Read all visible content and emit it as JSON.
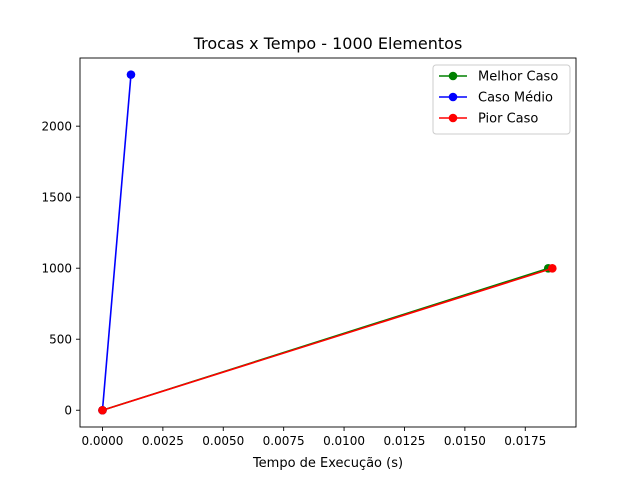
{
  "chart_data": {
    "type": "line",
    "title": "Trocas x Tempo - 1000 Elementos",
    "xlabel": "Tempo de Execução (s)",
    "ylabel": "",
    "xlim": [
      -0.00093,
      0.0196
    ],
    "ylim": [
      -118,
      2480
    ],
    "xticks": [
      0.0,
      0.0025,
      0.005,
      0.0075,
      0.01,
      0.0125,
      0.015,
      0.0175
    ],
    "xtick_labels": [
      "0.0000",
      "0.0025",
      "0.0050",
      "0.0075",
      "0.0100",
      "0.0125",
      "0.0150",
      "0.0175"
    ],
    "yticks": [
      0,
      500,
      1000,
      1500,
      2000
    ],
    "ytick_labels": [
      "0",
      "500",
      "1000",
      "1500",
      "2000"
    ],
    "grid": false,
    "legend_position": "upper right",
    "series": [
      {
        "name": "Melhor Caso",
        "color": "#008000",
        "x": [
          0.0,
          0.01845
        ],
        "y": [
          0,
          999
        ]
      },
      {
        "name": "Caso Médio",
        "color": "#0000ff",
        "x": [
          0.0,
          0.00118
        ],
        "y": [
          0,
          2363
        ]
      },
      {
        "name": "Pior Caso",
        "color": "#ff0000",
        "x": [
          0.0,
          0.01862
        ],
        "y": [
          0,
          999
        ]
      }
    ]
  }
}
